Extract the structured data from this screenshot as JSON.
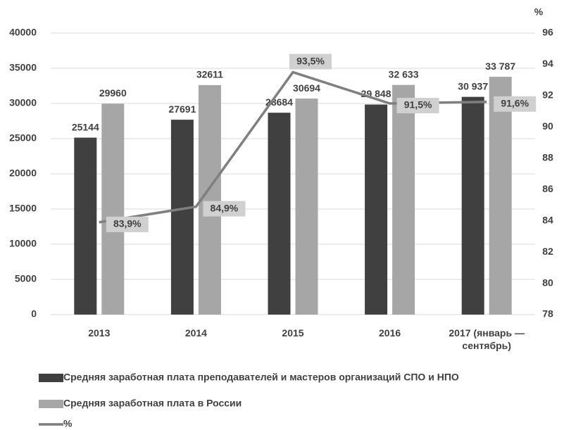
{
  "chart_data": {
    "type": "bar",
    "categories": [
      "2013",
      "2014",
      "2015",
      "2016",
      "2017 (январь — сентябрь)"
    ],
    "series": [
      {
        "name": "Средняя заработная плата преподавателей и мастеров организаций СПО и НПО",
        "color": "#404040",
        "values": [
          25144,
          27691,
          28684,
          29848,
          30937
        ],
        "value_labels": [
          "25144",
          "27691",
          "28684",
          "29 848",
          "30 937"
        ]
      },
      {
        "name": "Средняя заработная плата в России",
        "color": "#a6a6a6",
        "values": [
          29960,
          32611,
          30694,
          32633,
          33787
        ],
        "value_labels": [
          "29960",
          "32611",
          "30694",
          "32 633",
          "33 787"
        ]
      },
      {
        "name": "%",
        "type": "line",
        "axis": "y2",
        "color": "#7f7f7f",
        "values": [
          83.9,
          84.9,
          93.5,
          91.5,
          91.6
        ],
        "value_labels": [
          "83,9%",
          "84,9%",
          "93,5%",
          "91,5%",
          "91,6%"
        ]
      }
    ],
    "ylim": [
      0,
      40000
    ],
    "yticks": [
      0,
      5000,
      10000,
      15000,
      20000,
      25000,
      30000,
      35000,
      40000
    ],
    "y2label": "%",
    "y2lim": [
      78,
      96
    ],
    "y2ticks": [
      78,
      80,
      82,
      84,
      86,
      88,
      90,
      92,
      94,
      96
    ],
    "grid": true,
    "legend": "bottom"
  }
}
